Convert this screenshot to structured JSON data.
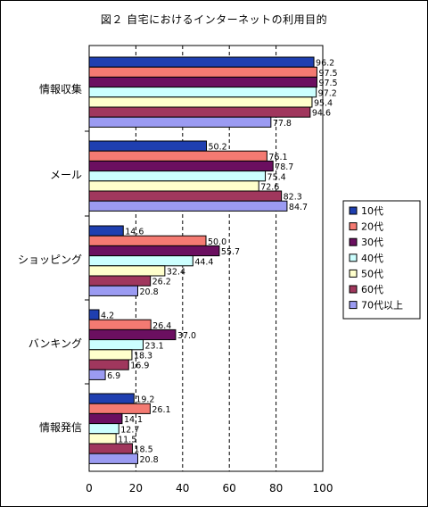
{
  "chart_data": {
    "type": "bar",
    "orientation": "horizontal",
    "title": "図２ 自宅におけるインターネットの利用目的",
    "categories": [
      "情報収集",
      "メール",
      "ショッピング",
      "バンキング",
      "情報発信"
    ],
    "series": [
      {
        "name": "10代",
        "color": "#1f3fb0",
        "values": [
          96.2,
          50.2,
          14.6,
          4.2,
          19.2
        ]
      },
      {
        "name": "20代",
        "color": "#f47a72",
        "values": [
          97.5,
          76.1,
          50.0,
          26.4,
          26.1
        ]
      },
      {
        "name": "30代",
        "color": "#6b0f60",
        "values": [
          97.5,
          78.7,
          55.7,
          37.0,
          14.1
        ]
      },
      {
        "name": "40代",
        "color": "#ccffff",
        "values": [
          97.2,
          75.4,
          44.4,
          23.1,
          12.7
        ]
      },
      {
        "name": "50代",
        "color": "#ffffcc",
        "values": [
          95.4,
          72.6,
          32.4,
          18.3,
          11.5
        ]
      },
      {
        "name": "60代",
        "color": "#a0375d",
        "values": [
          94.6,
          82.3,
          26.2,
          16.9,
          18.5
        ]
      },
      {
        "name": "70代以上",
        "color": "#9b9bf2",
        "values": [
          77.8,
          84.7,
          20.8,
          6.9,
          20.8
        ]
      }
    ],
    "value_labels": [
      [
        "96.2",
        "50.2",
        "14.6",
        "4.2",
        "19.2"
      ],
      [
        "97.5",
        "76.1",
        "50.0",
        "26.4",
        "26.1"
      ],
      [
        "97.5",
        "78.7",
        "55.7",
        "37.0",
        "14.1"
      ],
      [
        "97.2",
        "75.4",
        "44.4",
        "23.1",
        "12.7"
      ],
      [
        "95.4",
        "72.6",
        "32.4",
        "18.3",
        "11.5"
      ],
      [
        "94.6",
        "82.3",
        "26.2",
        "16.9",
        "18.5"
      ],
      [
        "77.8",
        "84.7",
        "20.8",
        "6.9",
        "20.8"
      ]
    ],
    "xlim": [
      0,
      100
    ],
    "xticks": [
      0,
      20,
      40,
      60,
      80,
      100
    ],
    "xtick_labels": [
      "0",
      "20",
      "40",
      "60",
      "80",
      "100"
    ],
    "grid": "vertical dashed",
    "legend": "right"
  }
}
